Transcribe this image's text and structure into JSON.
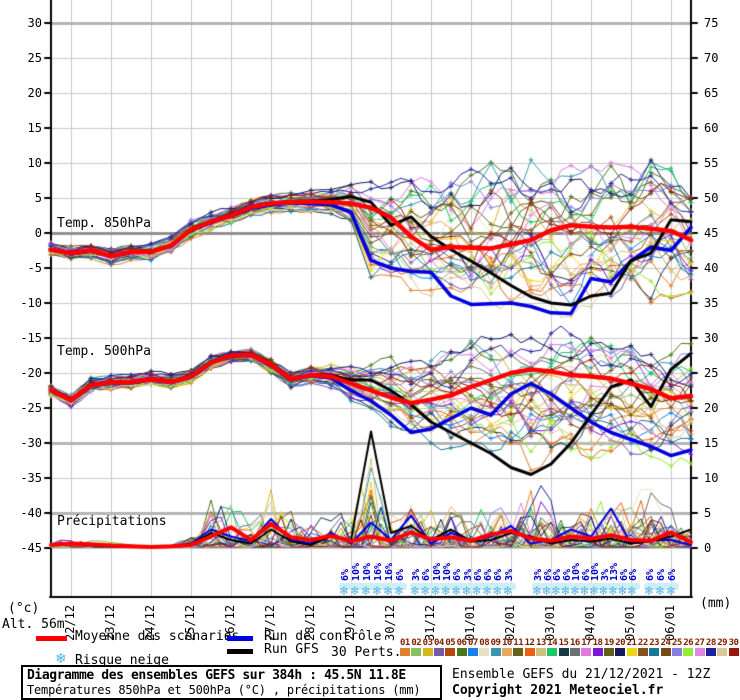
{
  "chart": {
    "panel_labels": {
      "t850": "Temp. 850hPa",
      "t500": "Temp. 500hPa",
      "precip": "Précipitations"
    },
    "axis_left_unit": "(°c)",
    "altitude": "Alt. 56m",
    "axis_right_unit": "(mm)",
    "legend": {
      "mean": "Moyenne des scénarios",
      "control": "Run de contrôle",
      "gfs": "Run GFS",
      "perts": "30 Perts.",
      "snow": "Risque neige"
    },
    "title_box": {
      "line1": "Diagramme des ensembles GEFS sur 384h : 45.5N 11.8E",
      "line2": "Températures 850hPa et 500hPa (°C) , précipitations (mm)"
    },
    "source": {
      "line1": "Ensemble GEFS du 21/12/2021 - 12Z",
      "line2": "Copyright 2021 Meteociel.fr"
    }
  },
  "pert_numbers": [
    "01",
    "02",
    "03",
    "04",
    "05",
    "06",
    "07",
    "08",
    "09",
    "10",
    "11",
    "12",
    "13",
    "14",
    "15",
    "16",
    "17",
    "18",
    "19",
    "20",
    "21",
    "22",
    "23",
    "24",
    "25",
    "26",
    "27",
    "28",
    "29",
    "30"
  ],
  "colors": {
    "mean": "#ff0000",
    "control": "#0000e0",
    "gfs": "#000000",
    "grid": "#c8c8c8",
    "grid_thick": "#b4b4b4",
    "grid_zero": "#909090",
    "axis": "#000000",
    "percent_text": "#0000cc",
    "pert_number_text": "#802000",
    "snowflake": "#4fb3e3",
    "snow_strip": "#cdeef9",
    "pert_colors": [
      "#e08030",
      "#88c060",
      "#d8b820",
      "#7858a8",
      "#b04810",
      "#487818",
      "#1880e8",
      "#e8e0c0",
      "#3898a8",
      "#e8a860",
      "#686018",
      "#e86010",
      "#d0c080",
      "#18c860",
      "#183848",
      "#687078",
      "#e078e0",
      "#7818d8",
      "#606018",
      "#181860",
      "#e8d818",
      "#885020",
      "#187898",
      "#784818",
      "#8880e0",
      "#98e838",
      "#e088e0",
      "#2020a0",
      "#d8c898",
      "#981810"
    ]
  },
  "chart_data": {
    "type": "line",
    "run_start": "21/12/2021 12Z",
    "hours_span": 384,
    "x_step_hours": 12,
    "dates": [
      "22/12",
      "23/12",
      "24/12",
      "25/12",
      "26/12",
      "27/12",
      "28/12",
      "29/12",
      "30/12",
      "31/12",
      "01/01",
      "02/01",
      "03/01",
      "04/01",
      "05/01",
      "06/01"
    ],
    "left_ticks": [
      30,
      25,
      20,
      15,
      10,
      5,
      0,
      -5,
      -10,
      -15,
      -20,
      -25,
      -30,
      -35,
      -40,
      -45
    ],
    "right_ticks": [
      75,
      70,
      65,
      60,
      55,
      50,
      45,
      40,
      35,
      30,
      25,
      20,
      15,
      10,
      5,
      0
    ],
    "ylim_left_temp_c": [
      -45,
      30
    ],
    "ylim_right_mm": [
      0,
      75
    ],
    "grid": true,
    "legend_position": "bottom",
    "series": {
      "t850": {
        "mean": [
          -2.4,
          -2.9,
          -2.5,
          -3.3,
          -2.7,
          -2.7,
          -1.8,
          0.5,
          1.6,
          2.5,
          3.7,
          4.2,
          4.4,
          4.5,
          4.4,
          4.2,
          3.6,
          2.2,
          -0.5,
          -2.4,
          -2.0,
          -2.1,
          -2.2,
          -1.6,
          -1.0,
          0.4,
          1.1,
          0.9,
          0.8,
          0.9,
          0.6,
          0.3,
          -1.0
        ],
        "control": [
          -2.4,
          -3.0,
          -2.6,
          -3.4,
          -2.8,
          -2.6,
          -1.9,
          0.4,
          1.5,
          2.4,
          3.5,
          4.0,
          4.3,
          4.2,
          4.0,
          3.0,
          -3.9,
          -5.0,
          -5.5,
          -5.6,
          -9.0,
          -10.2,
          -10.1,
          -10.0,
          -10.5,
          -11.4,
          -11.5,
          -6.5,
          -7.0,
          -4.0,
          -2.0,
          -2.5,
          0.8
        ],
        "gfs": [
          -2.4,
          -2.9,
          -2.5,
          -3.3,
          -2.7,
          -2.6,
          -1.8,
          0.6,
          1.7,
          2.6,
          3.8,
          4.3,
          4.5,
          4.6,
          4.8,
          5.2,
          4.4,
          1.1,
          2.3,
          -0.5,
          -2.4,
          -4.0,
          -5.7,
          -7.5,
          -9.1,
          -10.0,
          -10.3,
          -9.0,
          -8.6,
          -3.9,
          -2.9,
          1.9,
          1.6
        ],
        "env_min": [
          -3.4,
          -3.9,
          -3.6,
          -4.4,
          -3.8,
          -3.8,
          -3.0,
          -0.8,
          0.4,
          1.3,
          2.5,
          3.0,
          3.2,
          3.1,
          2.8,
          1.5,
          -6.0,
          -7.5,
          -8.5,
          -10.0,
          -11.5,
          -11.0,
          -11.5,
          -11.0,
          -11.5,
          -11.0,
          -11.5,
          -10.0,
          -9.5,
          -9.0,
          -9.5,
          -9.0,
          -9.0
        ],
        "env_max": [
          -1.4,
          -1.9,
          -1.6,
          -2.3,
          -1.7,
          -1.6,
          -0.6,
          1.8,
          2.8,
          3.7,
          4.9,
          5.4,
          5.6,
          5.9,
          6.2,
          6.8,
          7.0,
          7.0,
          7.0,
          7.5,
          8.0,
          8.5,
          9.5,
          10.0,
          10.5,
          10.0,
          9.5,
          9.0,
          9.5,
          9.0,
          10.0,
          9.0,
          8.0
        ]
      },
      "t500": {
        "mean": [
          -22.5,
          -23.9,
          -21.7,
          -21.4,
          -21.3,
          -20.9,
          -21.3,
          -20.5,
          -18.5,
          -17.5,
          -17.4,
          -18.8,
          -20.9,
          -20.3,
          -20.5,
          -21.5,
          -22.5,
          -23.5,
          -24.3,
          -23.8,
          -23.2,
          -22.0,
          -21.0,
          -20.0,
          -19.5,
          -19.8,
          -20.3,
          -20.5,
          -20.8,
          -21.5,
          -22.3,
          -23.6,
          -23.3
        ],
        "control": [
          -22.5,
          -24.0,
          -21.8,
          -21.5,
          -21.4,
          -21.0,
          -21.4,
          -20.6,
          -18.6,
          -17.6,
          -17.5,
          -18.9,
          -21.0,
          -20.4,
          -20.7,
          -22.5,
          -24.0,
          -26.0,
          -28.5,
          -28.0,
          -26.5,
          -25.0,
          -26.0,
          -23.0,
          -21.5,
          -23.0,
          -25.0,
          -27.0,
          -28.5,
          -29.5,
          -30.5,
          -31.8,
          -31.0
        ],
        "gfs": [
          -22.5,
          -23.8,
          -21.6,
          -21.3,
          -21.2,
          -20.8,
          -21.2,
          -20.4,
          -18.4,
          -17.4,
          -17.3,
          -18.7,
          -20.8,
          -20.2,
          -20.3,
          -21.0,
          -21.0,
          -22.5,
          -24.5,
          -27.0,
          -28.5,
          -30.0,
          -31.5,
          -33.5,
          -34.5,
          -33.0,
          -30.0,
          -26.0,
          -22.0,
          -21.0,
          -24.8,
          -19.5,
          -17.2
        ],
        "env_min": [
          -23.5,
          -24.9,
          -22.7,
          -22.4,
          -22.3,
          -21.9,
          -22.3,
          -21.5,
          -19.5,
          -18.5,
          -18.4,
          -20.0,
          -22.0,
          -21.5,
          -22.0,
          -24.0,
          -26.0,
          -27.5,
          -29.5,
          -30.0,
          -30.5,
          -31.0,
          -31.5,
          -32.5,
          -33.5,
          -34.0,
          -33.0,
          -32.0,
          -31.0,
          -31.5,
          -32.5,
          -33.0,
          -32.5
        ],
        "env_max": [
          -21.5,
          -22.9,
          -20.7,
          -20.4,
          -20.3,
          -19.9,
          -20.3,
          -19.5,
          -17.5,
          -16.5,
          -16.4,
          -17.8,
          -19.8,
          -19.1,
          -19.0,
          -19.0,
          -18.5,
          -18.0,
          -17.5,
          -17.0,
          -16.5,
          -15.5,
          -15.0,
          -14.8,
          -14.5,
          -14.5,
          -15.0,
          -15.0,
          -15.0,
          -15.5,
          -16.0,
          -16.0,
          -15.5
        ]
      },
      "precip": {
        "mean": [
          0.3,
          0.5,
          0.4,
          0.2,
          0.1,
          0.0,
          0.1,
          0.3,
          1.5,
          2.8,
          1.0,
          3.3,
          1.4,
          1.0,
          1.6,
          0.8,
          1.5,
          0.9,
          2.1,
          1.1,
          1.4,
          0.9,
          1.8,
          2.3,
          1.2,
          0.9,
          1.5,
          1.2,
          1.7,
          1.0,
          0.9,
          2.1,
          0.7
        ],
        "control": [
          0.4,
          0.6,
          0.3,
          0.1,
          0.0,
          0.0,
          0.0,
          0.5,
          2.5,
          1.5,
          0.8,
          4.0,
          1.0,
          0.5,
          2.0,
          0.5,
          3.5,
          1.0,
          4.5,
          0.5,
          2.0,
          1.0,
          1.5,
          3.0,
          0.5,
          1.0,
          2.5,
          1.5,
          5.5,
          0.5,
          1.0,
          1.0,
          0.3
        ],
        "gfs": [
          0.3,
          0.5,
          0.3,
          0.1,
          0.0,
          0.0,
          0.0,
          0.4,
          2.0,
          1.0,
          0.5,
          2.5,
          0.8,
          0.3,
          1.5,
          1.0,
          16.5,
          2.0,
          3.0,
          1.0,
          2.5,
          0.8,
          1.0,
          2.0,
          1.5,
          0.5,
          1.0,
          0.8,
          1.2,
          0.5,
          0.8,
          1.5,
          2.5
        ],
        "env_max": [
          1.2,
          1.5,
          1.2,
          0.6,
          0.3,
          0.2,
          0.3,
          1.5,
          9.0,
          6.5,
          5.0,
          9.5,
          7.0,
          5.0,
          6.0,
          5.0,
          16.5,
          6.0,
          8.0,
          6.0,
          7.0,
          5.0,
          8.0,
          7.0,
          10.0,
          8.0,
          7.0,
          8.0,
          7.0,
          6.0,
          9.0,
          5.0,
          4.0
        ]
      }
    },
    "snow_risk_groups": [
      {
        "x_start": 345,
        "x_step": 11.0,
        "percents": [
          "6%",
          "10%",
          "10%",
          "16%",
          "16%",
          "6%"
        ]
      },
      {
        "x_start": 416,
        "x_step": 10.3,
        "percents": [
          "3%",
          "6%",
          "10%",
          "10%",
          "6%",
          "3%",
          "6%",
          "6%",
          "6%",
          "3%"
        ]
      },
      {
        "x_start": 538,
        "x_step": 9.5,
        "percents": [
          "3%",
          "6%",
          "6%",
          "6%",
          "10%",
          "6%",
          "10%",
          "3%",
          "13%",
          "6%",
          "6%"
        ]
      },
      {
        "x_start": 650,
        "x_step": 11.0,
        "percents": [
          "6%",
          "6%",
          "6%"
        ]
      }
    ]
  }
}
